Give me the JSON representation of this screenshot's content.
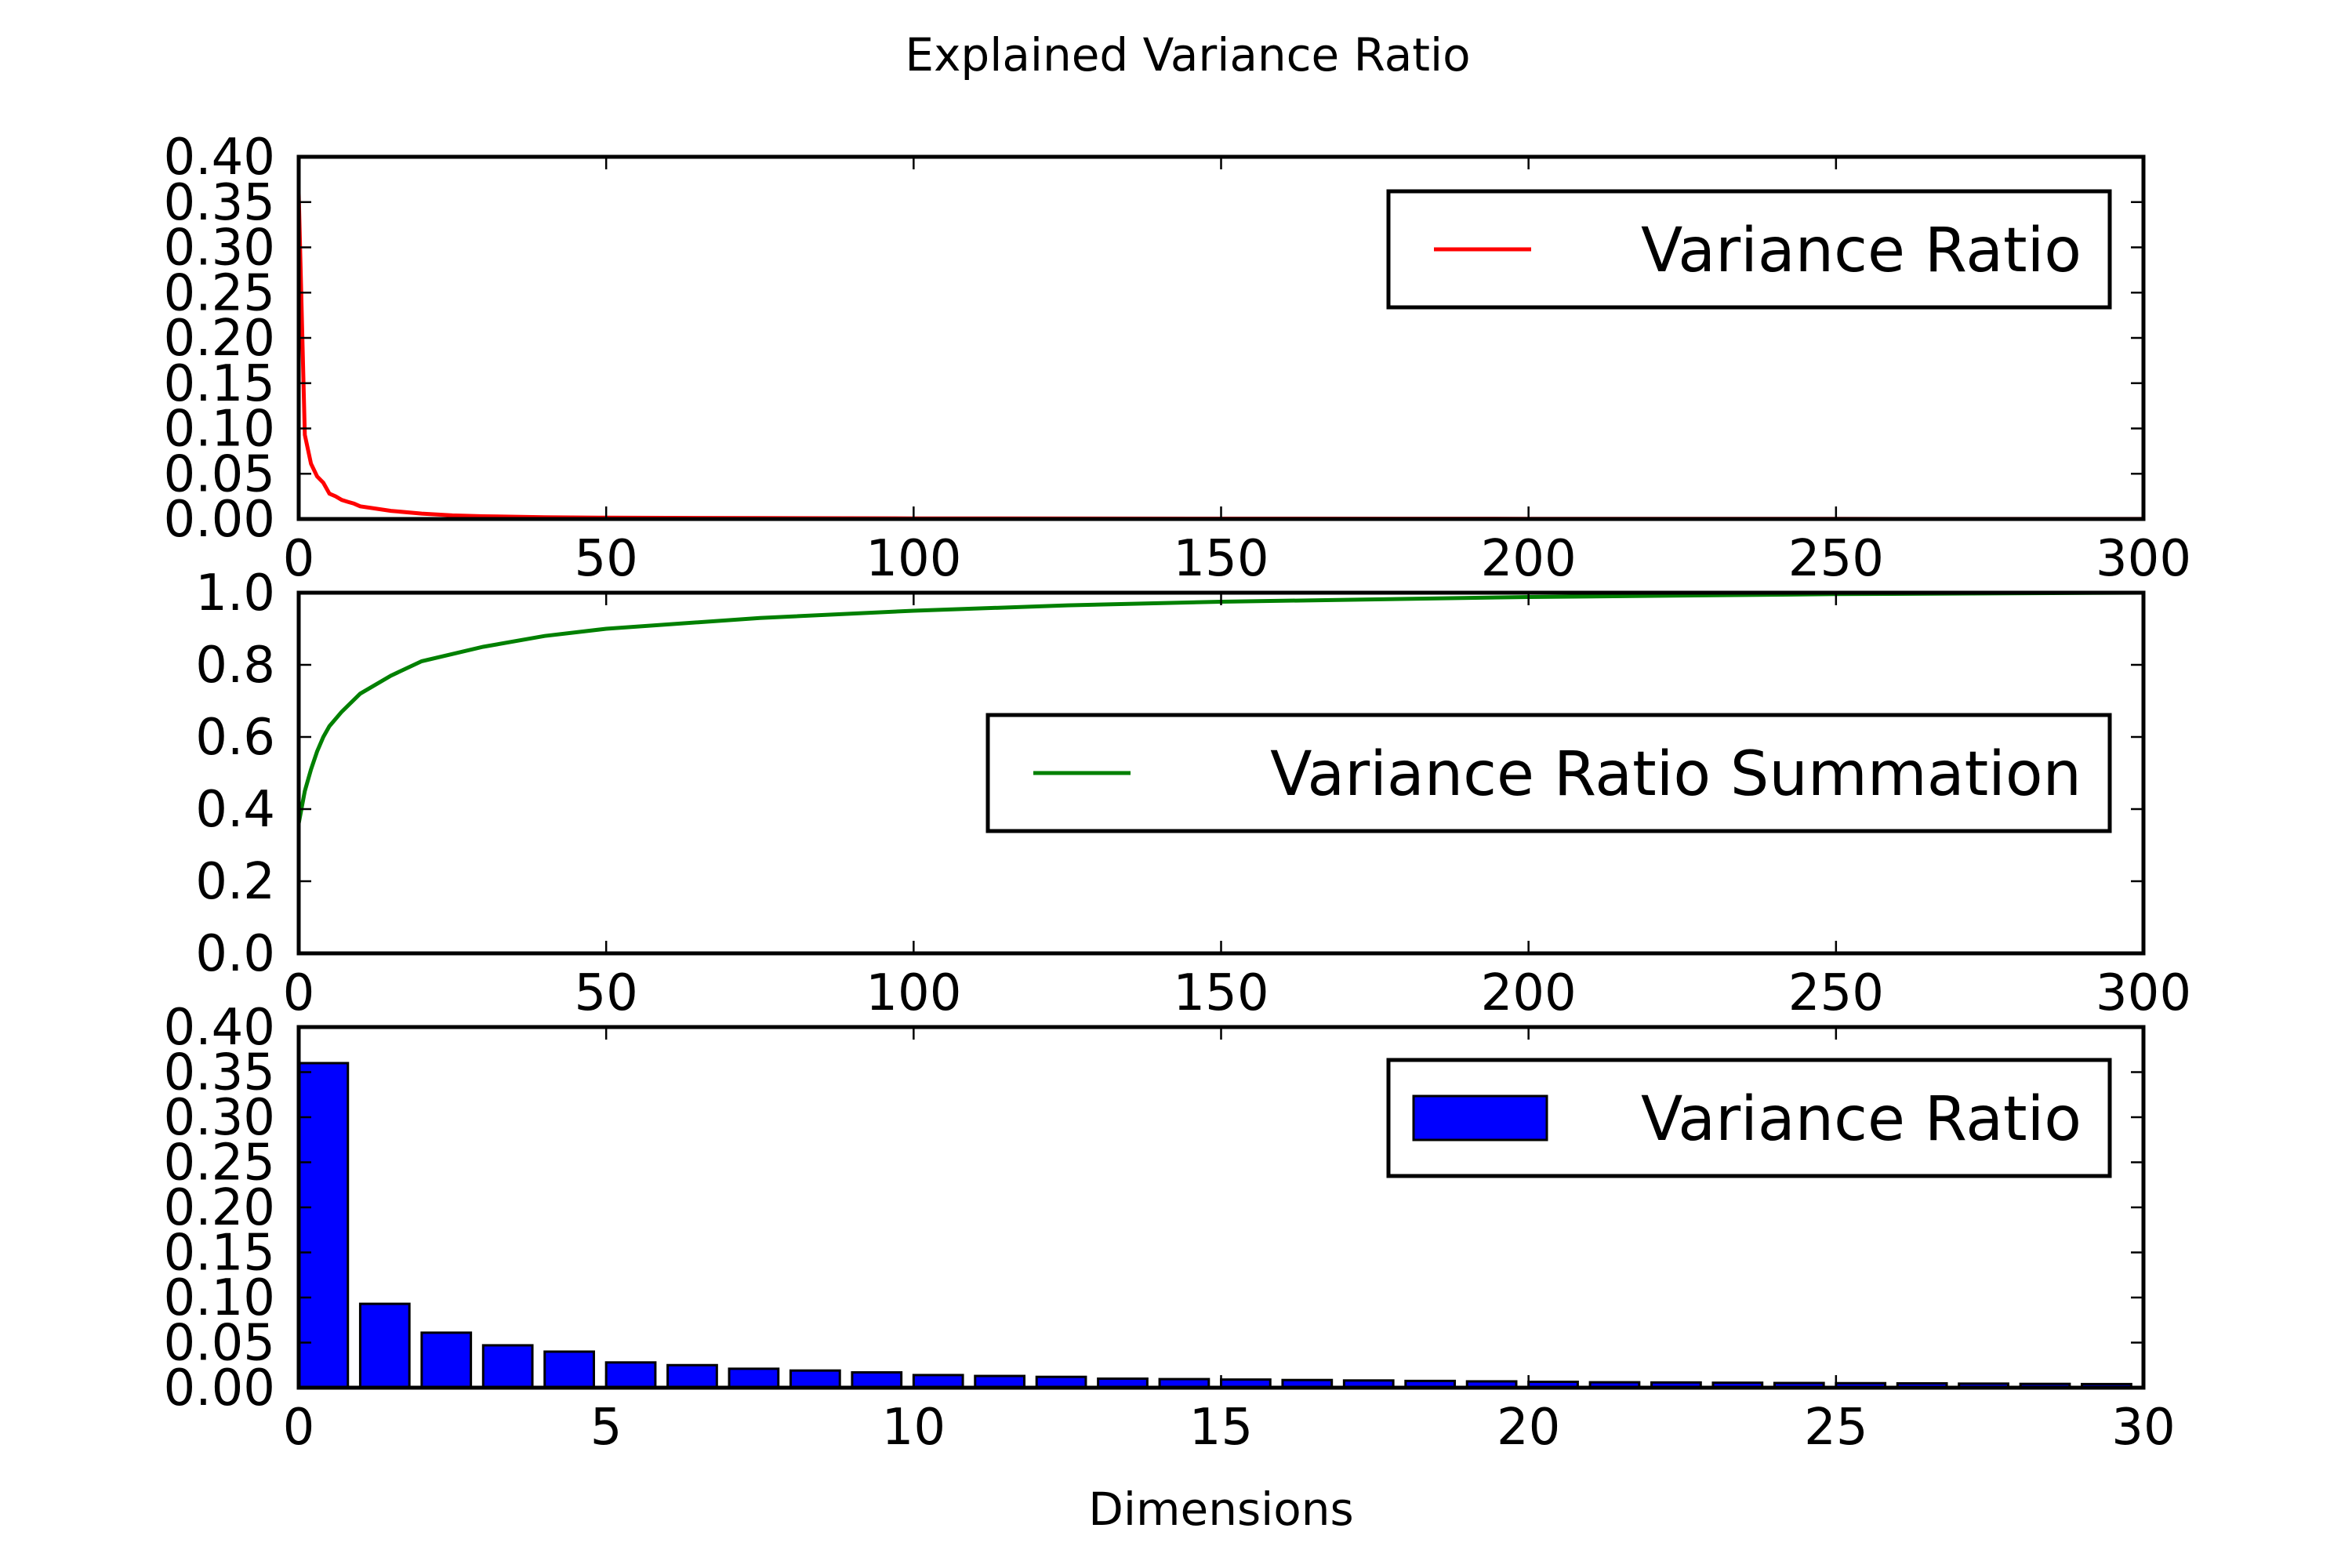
{
  "figure": {
    "title": "Explained Variance Ratio"
  },
  "chart_data": [
    {
      "type": "line",
      "xlim": [
        0,
        300
      ],
      "ylim": [
        0,
        0.4
      ],
      "xticks": [
        "0",
        "50",
        "100",
        "150",
        "200",
        "250",
        "300"
      ],
      "yticks": [
        "0.00",
        "0.05",
        "0.10",
        "0.15",
        "0.20",
        "0.25",
        "0.30",
        "0.35",
        "0.40"
      ],
      "legend_position": "top-right",
      "series": [
        {
          "name": "Variance Ratio",
          "color": "#ff0000",
          "x": [
            0,
            1,
            2,
            3,
            4,
            5,
            6,
            7,
            8,
            9,
            10,
            12,
            15,
            20,
            25,
            30,
            40,
            50,
            75,
            100,
            150,
            200,
            250,
            300
          ],
          "y": [
            0.36,
            0.093,
            0.061,
            0.047,
            0.04,
            0.028,
            0.025,
            0.021,
            0.019,
            0.017,
            0.014,
            0.012,
            0.009,
            0.006,
            0.004,
            0.003,
            0.002,
            0.0015,
            0.001,
            0.0007,
            0.0004,
            0.0003,
            0.0002,
            0.0001
          ]
        }
      ]
    },
    {
      "type": "line",
      "xlim": [
        0,
        300
      ],
      "ylim": [
        0,
        1.0
      ],
      "xticks": [
        "0",
        "50",
        "100",
        "150",
        "200",
        "250",
        "300"
      ],
      "yticks": [
        "0.0",
        "0.2",
        "0.4",
        "0.6",
        "0.8",
        "1.0"
      ],
      "legend_position": "center-right",
      "series": [
        {
          "name": "Variance Ratio Summation",
          "color": "#008000",
          "x": [
            0,
            1,
            2,
            3,
            4,
            5,
            7,
            10,
            15,
            20,
            25,
            30,
            40,
            50,
            75,
            100,
            125,
            150,
            200,
            250,
            300
          ],
          "y": [
            0.36,
            0.45,
            0.51,
            0.56,
            0.6,
            0.63,
            0.67,
            0.72,
            0.77,
            0.81,
            0.83,
            0.85,
            0.88,
            0.9,
            0.93,
            0.95,
            0.965,
            0.975,
            0.988,
            0.996,
            1.0
          ]
        }
      ]
    },
    {
      "type": "bar",
      "xlim": [
        0,
        30
      ],
      "ylim": [
        0,
        0.4
      ],
      "xticks": [
        "0",
        "5",
        "10",
        "15",
        "20",
        "25",
        "30"
      ],
      "yticks": [
        "0.00",
        "0.05",
        "0.10",
        "0.15",
        "0.20",
        "0.25",
        "0.30",
        "0.35",
        "0.40"
      ],
      "xlabel": "Dimensions",
      "legend_position": "top-right",
      "series": [
        {
          "name": "Variance Ratio",
          "color": "#0000ff",
          "x": [
            0,
            1,
            2,
            3,
            4,
            5,
            6,
            7,
            8,
            9,
            10,
            11,
            12,
            13,
            14,
            15,
            16,
            17,
            18,
            19,
            20,
            21,
            22,
            23,
            24,
            25,
            26,
            27,
            28,
            29
          ],
          "values": [
            0.36,
            0.093,
            0.061,
            0.047,
            0.04,
            0.028,
            0.025,
            0.021,
            0.019,
            0.017,
            0.014,
            0.013,
            0.012,
            0.01,
            0.0095,
            0.009,
            0.0085,
            0.008,
            0.0075,
            0.007,
            0.0065,
            0.006,
            0.0058,
            0.0055,
            0.0052,
            0.005,
            0.0048,
            0.0045,
            0.0042,
            0.004
          ]
        }
      ]
    }
  ]
}
